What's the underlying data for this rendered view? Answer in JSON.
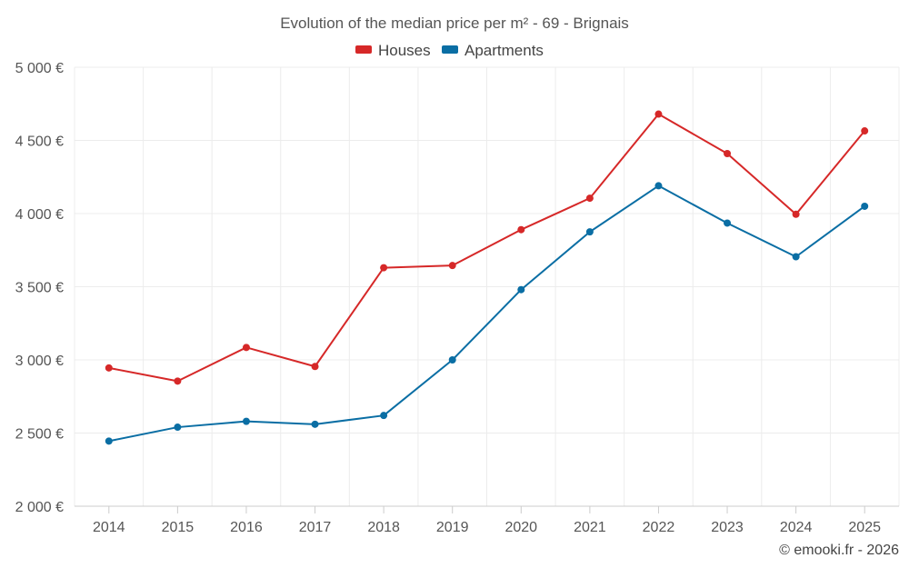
{
  "chart_data": {
    "type": "line",
    "title": "Evolution of the median price per m² - 69 - Brignais",
    "categories": [
      "2014",
      "2015",
      "2016",
      "2017",
      "2018",
      "2019",
      "2020",
      "2021",
      "2022",
      "2023",
      "2024",
      "2025"
    ],
    "series": [
      {
        "name": "Houses",
        "color": "#d62828",
        "values": [
          2945,
          2855,
          3085,
          2955,
          3630,
          3645,
          3890,
          4105,
          4680,
          4410,
          3995,
          4565
        ]
      },
      {
        "name": "Apartments",
        "color": "#0a6ea4",
        "values": [
          2445,
          2540,
          2580,
          2560,
          2620,
          3000,
          3480,
          3875,
          4190,
          3935,
          3705,
          4050
        ]
      }
    ],
    "yticks": [
      "2 000 €",
      "2 500 €",
      "3 000 €",
      "3 500 €",
      "4 000 €",
      "4 500 €",
      "5 000 €"
    ],
    "ytick_values": [
      2000,
      2500,
      3000,
      3500,
      4000,
      4500,
      5000
    ],
    "ylim": [
      2000,
      5000
    ],
    "xlabel": "",
    "ylabel": "",
    "grid": true,
    "legend": "top-center"
  },
  "credit": "© emooki.fr - 2026"
}
